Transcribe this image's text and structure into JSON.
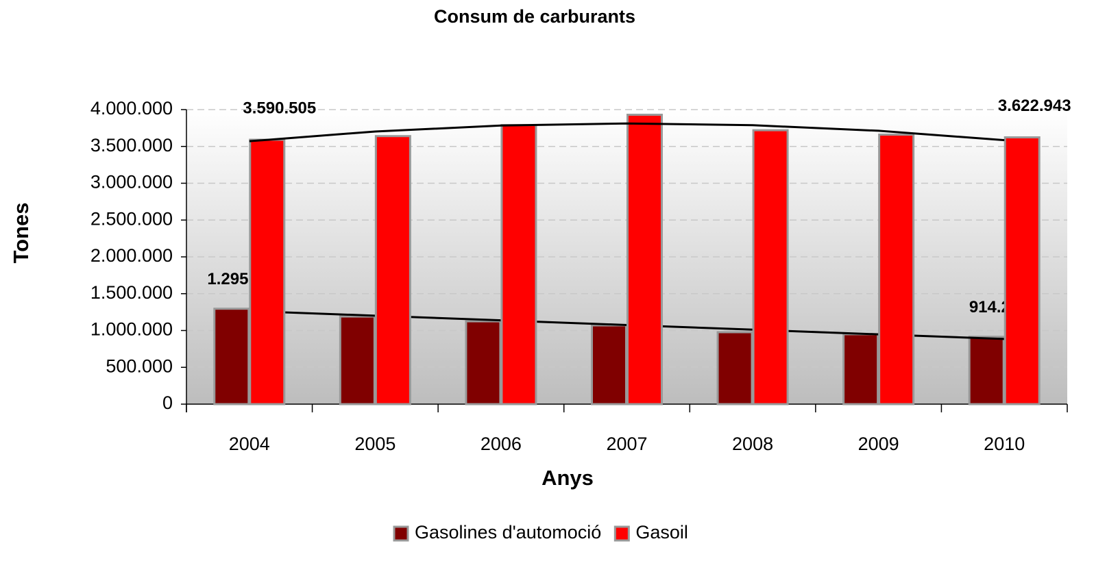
{
  "chart_data": {
    "type": "bar",
    "title": "Consum de carburants",
    "x_label": "Anys",
    "y_label": "Tones",
    "categories": [
      "2004",
      "2005",
      "2006",
      "2007",
      "2008",
      "2009",
      "2010"
    ],
    "series": [
      {
        "name": "Gasolines d'automoció",
        "color": "#800000",
        "trendline": "linear",
        "values": [
          1295787,
          1190000,
          1125000,
          1070000,
          977000,
          950000,
          914296
        ],
        "value_labels": [
          "1.295.787",
          null,
          null,
          null,
          null,
          null,
          "914.296"
        ]
      },
      {
        "name": "Gasoil",
        "color": "#ff0000",
        "trendline": "polynomial",
        "values": [
          3590505,
          3640000,
          3790000,
          3930000,
          3720000,
          3660000,
          3622943
        ],
        "value_labels": [
          "3.590.505",
          null,
          null,
          null,
          null,
          null,
          "3.622.943"
        ]
      }
    ],
    "ylim": [
      0,
      4000000
    ],
    "yticks": [
      0,
      {
        "value": 500000,
        "label": "500.000"
      },
      {
        "value": 1000000,
        "label": "1.000.000"
      },
      {
        "value": 1500000,
        "label": "1.500.000"
      },
      {
        "value": 2000000,
        "label": "2.000.000"
      },
      {
        "value": 2500000,
        "label": "2.500.000"
      },
      {
        "value": 3000000,
        "label": "3.000.000"
      },
      {
        "value": 3500000,
        "label": "3.500.000"
      },
      {
        "value": 4000000,
        "label": "4.000.000"
      }
    ],
    "grid": true,
    "legend": "bottom"
  }
}
